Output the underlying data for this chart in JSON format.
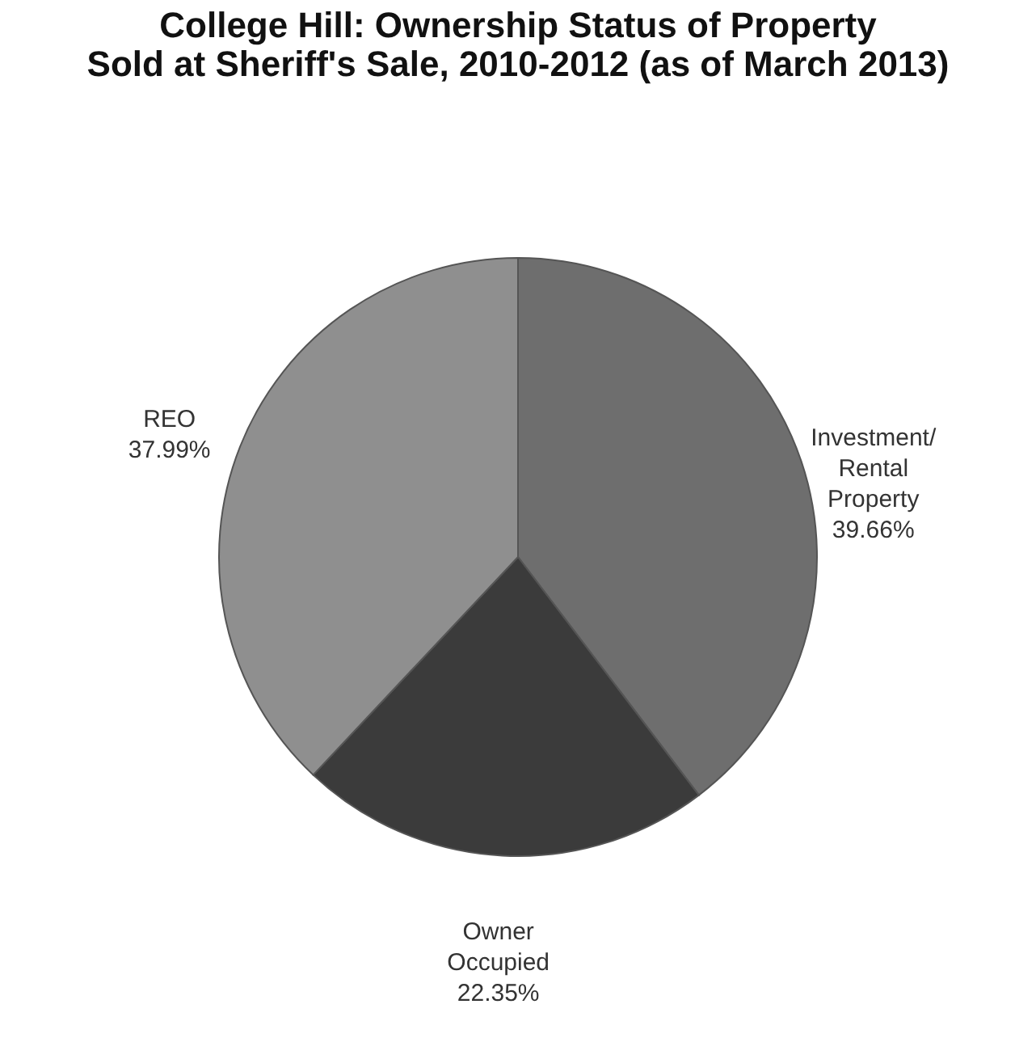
{
  "chart_data": {
    "type": "pie",
    "title": [
      "College Hill: Ownership Status of Property",
      "Sold at Sheriff's Sale, 2010-2012 (as of March 2013)"
    ],
    "categories": [
      "Investment/ Rental Property",
      "Owner Occupied",
      "REO"
    ],
    "values": [
      39.66,
      22.35,
      37.99
    ],
    "colors": [
      "#6e6e6e",
      "#3b3b3b",
      "#8f8f8f"
    ],
    "value_labels": [
      "39.66%",
      "22.35%",
      "37.99%"
    ],
    "legend": false
  }
}
